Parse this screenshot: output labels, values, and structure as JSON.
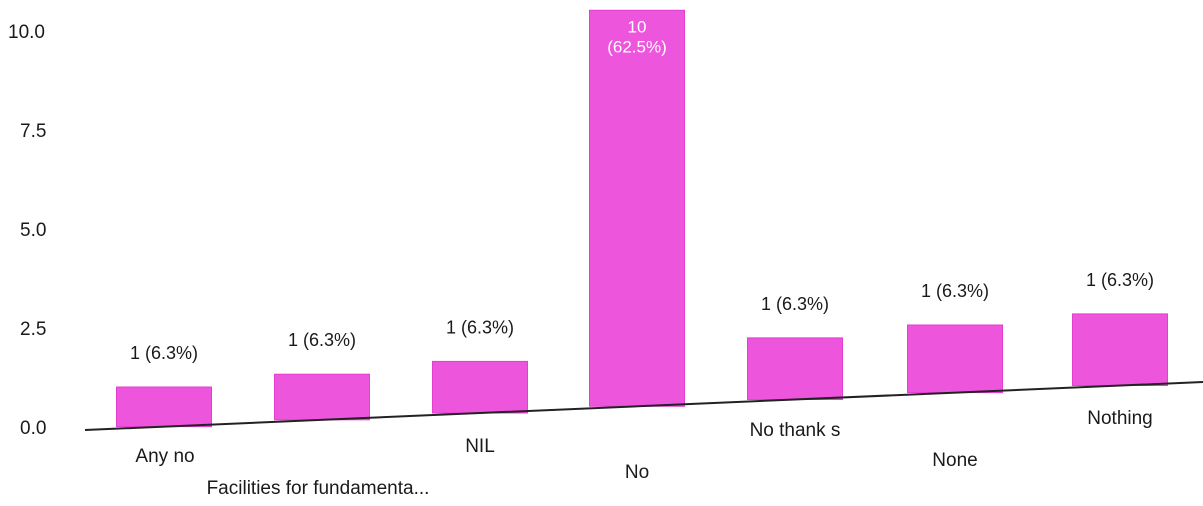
{
  "chart_data": {
    "type": "bar",
    "title": "",
    "xlabel": "",
    "ylabel": "",
    "ylim": [
      0,
      10
    ],
    "yticks": [
      "0.0",
      "2.5",
      "5.0",
      "7.5",
      "10.0"
    ],
    "categories": [
      "Any no",
      "Facilities for fundamenta...",
      "NIL",
      "No",
      "No thank s",
      "None",
      "Nothing"
    ],
    "values": [
      1,
      1,
      1,
      10,
      1,
      1,
      1
    ],
    "data_labels": [
      "1 (6.3%)",
      "1 (6.3%)",
      "1 (6.3%)",
      "10\n(62.5%)",
      "1 (6.3%)",
      "1 (6.3%)",
      "1 (6.3%)"
    ],
    "bar_color": "#ee55dd",
    "grid": false
  }
}
